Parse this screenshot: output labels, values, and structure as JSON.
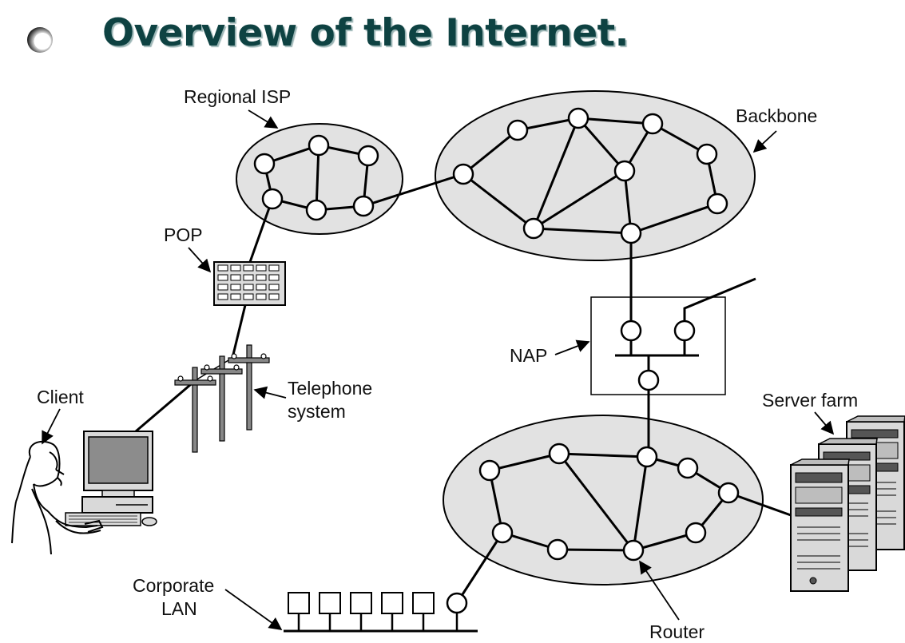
{
  "title": "Overview of the Internet.",
  "labels": {
    "regional_isp": "Regional ISP",
    "backbone": "Backbone",
    "pop": "POP",
    "nap": "NAP",
    "client": "Client",
    "telephone_line1": "Telephone",
    "telephone_line2": "system",
    "server_farm": "Server farm",
    "corporate_line1": "Corporate",
    "corporate_line2": "LAN",
    "router": "Router"
  }
}
